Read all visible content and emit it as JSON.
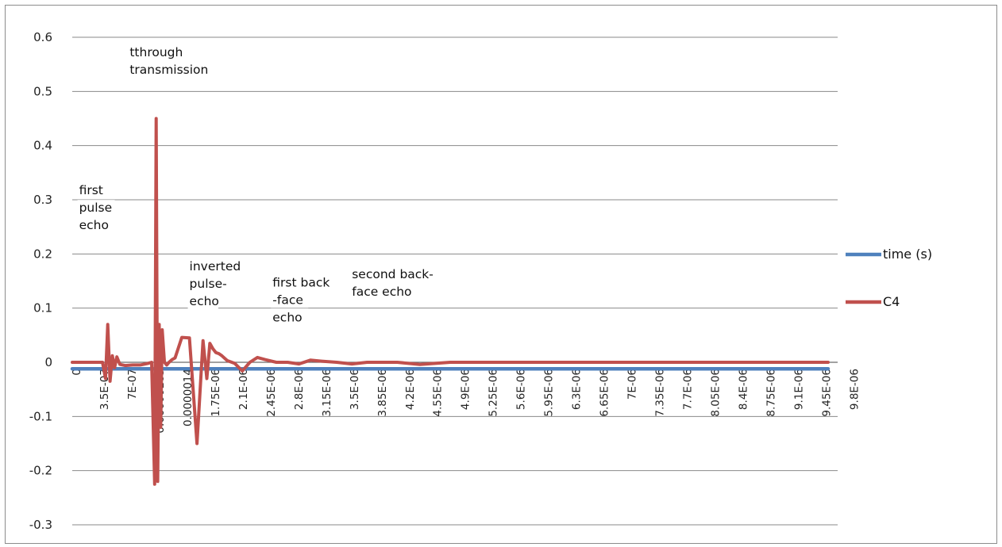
{
  "chart_data": {
    "type": "line",
    "ylim": [
      -0.3,
      0.6
    ],
    "yticks": [
      0.6,
      0.5,
      0.4,
      0.3,
      0.2,
      0.1,
      0,
      -0.1,
      -0.2,
      -0.3
    ],
    "ytick_labels": [
      "0.6",
      "0.5",
      "0.4",
      "0.3",
      "0.2",
      "0.1",
      "0",
      "-0.1",
      "-0.2",
      "-0.3"
    ],
    "grid": true,
    "legend_position": "right",
    "categories": [
      "0",
      "3.5E-07",
      "7E-07",
      "0.00000105",
      "0.0000014",
      "1.75E-06",
      "2.1E-06",
      "2.45E-06",
      "2.8E-06",
      "3.15E-06",
      "3.5E-06",
      "3.85E-06",
      "4.2E-06",
      "4.55E-06",
      "4.9E-06",
      "5.25E-06",
      "5.6E-06",
      "5.95E-06",
      "6.3E-06",
      "6.65E-06",
      "7E-06",
      "7.35E-06",
      "7.7E-06",
      "8.05E-06",
      "8.4E-06",
      "8.75E-06",
      "9.1E-06",
      "9.45E-06",
      "9.8E-06"
    ],
    "x_range": [
      0,
      1e-05
    ],
    "series": [
      {
        "name": "time (s)",
        "color": "#4f81bd",
        "x": [
          0,
          1e-05
        ],
        "y": [
          -0.012,
          -0.012
        ]
      },
      {
        "name": "C4",
        "color": "#c0504d",
        "x": [
          0,
          4e-07,
          4.4e-07,
          4.7e-07,
          5e-07,
          5.3e-07,
          5.6e-07,
          5.9e-07,
          6.3e-07,
          7e-07,
          8e-07,
          9e-07,
          1e-06,
          1.05e-06,
          1.09e-06,
          1.11e-06,
          1.13e-06,
          1.15e-06,
          1.17e-06,
          1.19e-06,
          1.22e-06,
          1.25e-06,
          1.28e-06,
          1.32e-06,
          1.36e-06,
          1.45e-06,
          1.55e-06,
          1.65e-06,
          1.73e-06,
          1.78e-06,
          1.82e-06,
          1.86e-06,
          1.9e-06,
          1.94e-06,
          1.98e-06,
          2.05e-06,
          2.15e-06,
          2.25e-06,
          2.35e-06,
          2.45e-06,
          2.55e-06,
          2.7e-06,
          2.85e-06,
          3e-06,
          3.15e-06,
          3.3e-06,
          3.5e-06,
          3.7e-06,
          3.9e-06,
          4.1e-06,
          4.3e-06,
          4.6e-06,
          5e-06,
          6e-06,
          7e-06,
          8e-06,
          9e-06,
          1e-05
        ],
        "y": [
          0,
          0,
          -0.03,
          0.07,
          -0.035,
          0.012,
          -0.01,
          0.01,
          -0.004,
          -0.006,
          -0.005,
          -0.005,
          -0.002,
          0.0,
          -0.225,
          0.45,
          -0.22,
          0.07,
          -0.12,
          0.06,
          0.0,
          -0.005,
          0.0,
          0.005,
          0.008,
          0.046,
          0.045,
          -0.15,
          0.04,
          -0.03,
          0.035,
          0.025,
          0.018,
          0.016,
          0.012,
          0.003,
          -0.002,
          -0.016,
          0.0,
          0.009,
          0.005,
          0.0,
          0.0,
          -0.003,
          0.004,
          0.002,
          0.0,
          -0.003,
          0.0,
          0.0,
          0.0,
          -0.004,
          0.0,
          0.0,
          0.0,
          0.0,
          0.0,
          0.0
        ]
      }
    ],
    "annotations": [
      {
        "lines": [
          "tthrough",
          "transmission"
        ],
        "x": 7.6e-07,
        "y": 0.565
      },
      {
        "lines": [
          "first",
          "pulse",
          "echo"
        ],
        "x": 9e-08,
        "y": 0.31
      },
      {
        "lines": [
          "inverted",
          "pulse-",
          "echo"
        ],
        "x": 1.55e-06,
        "y": 0.17
      },
      {
        "lines": [
          "first back",
          "-face",
          "echo"
        ],
        "x": 2.65e-06,
        "y": 0.14
      },
      {
        "lines": [
          "second back-",
          "face echo"
        ],
        "x": 3.7e-06,
        "y": 0.155
      }
    ]
  }
}
